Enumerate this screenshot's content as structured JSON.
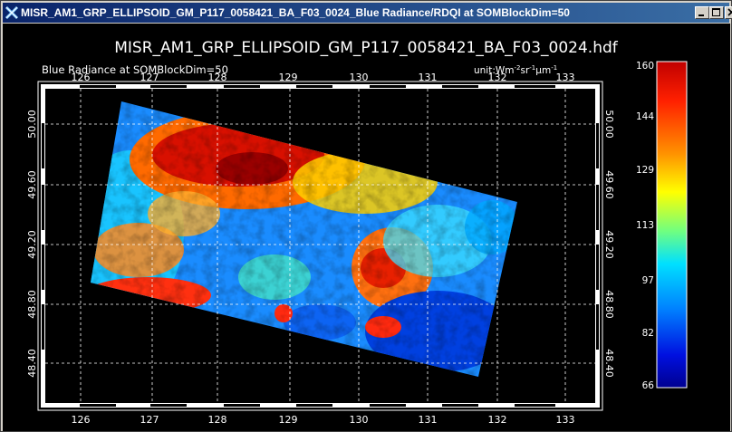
{
  "window": {
    "title": "MISR_AM1_GRP_ELLIPSOID_GM_P117_0058421_BA_F03_0024_Blue Radiance/RDQI at SOMBlockDim=50",
    "buttons": [
      "minimize",
      "maximize",
      "close"
    ]
  },
  "plot": {
    "main_title": "MISR_AM1_GRP_ELLIPSOID_GM_P117_0058421_BA_F03_0024.hdf",
    "subtitle": "Blue Radiance at SOMBlockDim=50",
    "unit_label": "unit:Wm",
    "unit_sup1": "-2",
    "unit_mid": "sr",
    "unit_sup2": "-1",
    "unit_mu": "µm",
    "unit_sup3": "-1",
    "lon_ticks": [
      "126",
      "127",
      "128",
      "129",
      "130",
      "131",
      "132",
      "133"
    ],
    "lat_ticks": [
      "50.00",
      "49.60",
      "49.20",
      "48.80",
      "48.40"
    ],
    "colorbar_labels": [
      "160",
      "144",
      "129",
      "113",
      "97",
      "82",
      "66"
    ],
    "colors": {
      "background": "#000000",
      "frame": "#ffffff",
      "grid": "#ffffff"
    }
  }
}
